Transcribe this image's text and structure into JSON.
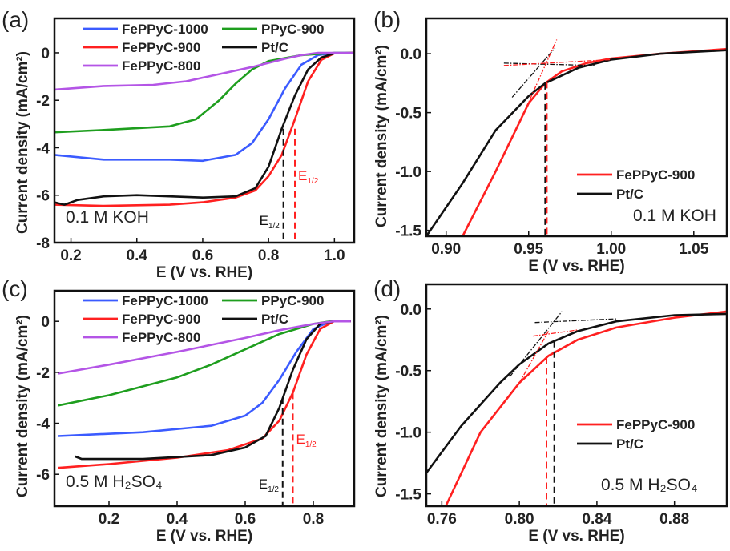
{
  "chart_data": [
    {
      "panel_label": "(a)",
      "type": "line",
      "xlabel": "E (V vs. RHE)",
      "ylabel": "Current density (mA/cm²)",
      "xlim": [
        0.15,
        1.06
      ],
      "ylim": [
        -8,
        1.45
      ],
      "xticks": [
        0.2,
        0.4,
        0.6,
        0.8,
        1.0
      ],
      "xtick_labels": [
        "0.2",
        "0.4",
        "0.6",
        "0.8",
        "1.0"
      ],
      "yticks": [
        -8,
        -6,
        -4,
        -2,
        0
      ],
      "ytick_labels": [
        "-8",
        "-6",
        "-4",
        "-2",
        "0"
      ],
      "annotation": "0.1 M KOH",
      "legend_layout": "grid",
      "series": [
        {
          "name": "FePPyC-1000",
          "color": "#3b5bff",
          "points": [
            [
              0.15,
              -4.3
            ],
            [
              0.3,
              -4.5
            ],
            [
              0.5,
              -4.5
            ],
            [
              0.6,
              -4.55
            ],
            [
              0.7,
              -4.3
            ],
            [
              0.75,
              -3.8
            ],
            [
              0.8,
              -2.8
            ],
            [
              0.85,
              -1.5
            ],
            [
              0.9,
              -0.5
            ],
            [
              0.95,
              -0.1
            ],
            [
              1.0,
              0
            ],
            [
              1.06,
              0
            ]
          ]
        },
        {
          "name": "PPyC-900",
          "color": "#1e9e1e",
          "points": [
            [
              0.15,
              -3.35
            ],
            [
              0.3,
              -3.25
            ],
            [
              0.5,
              -3.1
            ],
            [
              0.58,
              -2.8
            ],
            [
              0.65,
              -2.0
            ],
            [
              0.7,
              -1.3
            ],
            [
              0.75,
              -0.7
            ],
            [
              0.8,
              -0.35
            ],
            [
              0.9,
              -0.1
            ],
            [
              1.0,
              0
            ],
            [
              1.06,
              0
            ]
          ]
        },
        {
          "name": "FePPyC-900",
          "color": "#ff2020",
          "points": [
            [
              0.15,
              -6.4
            ],
            [
              0.3,
              -6.45
            ],
            [
              0.5,
              -6.4
            ],
            [
              0.6,
              -6.3
            ],
            [
              0.7,
              -6.1
            ],
            [
              0.76,
              -5.8
            ],
            [
              0.8,
              -5.2
            ],
            [
              0.84,
              -4.3
            ],
            [
              0.88,
              -2.8
            ],
            [
              0.92,
              -1.2
            ],
            [
              0.96,
              -0.3
            ],
            [
              1.0,
              -0.02
            ],
            [
              1.06,
              0
            ]
          ]
        },
        {
          "name": "Pt/C",
          "color": "#111111",
          "points": [
            [
              0.15,
              -6.3
            ],
            [
              0.18,
              -6.4
            ],
            [
              0.22,
              -6.2
            ],
            [
              0.3,
              -6.05
            ],
            [
              0.4,
              -6.0
            ],
            [
              0.5,
              -6.05
            ],
            [
              0.6,
              -6.1
            ],
            [
              0.7,
              -6.05
            ],
            [
              0.76,
              -5.7
            ],
            [
              0.8,
              -4.8
            ],
            [
              0.84,
              -3.2
            ],
            [
              0.88,
              -1.8
            ],
            [
              0.92,
              -0.7
            ],
            [
              0.96,
              -0.2
            ],
            [
              1.0,
              -0.02
            ],
            [
              1.06,
              0
            ]
          ]
        },
        {
          "name": "FePPyC-800",
          "color": "#b455e6",
          "points": [
            [
              0.15,
              -1.55
            ],
            [
              0.3,
              -1.4
            ],
            [
              0.45,
              -1.35
            ],
            [
              0.55,
              -1.2
            ],
            [
              0.65,
              -0.9
            ],
            [
              0.75,
              -0.6
            ],
            [
              0.85,
              -0.25
            ],
            [
              0.9,
              -0.1
            ],
            [
              0.95,
              0
            ],
            [
              1.06,
              0
            ]
          ]
        }
      ],
      "e_half": [
        {
          "x": 0.845,
          "y_top": -3.2,
          "color": "#111111"
        },
        {
          "x": 0.88,
          "y_top": -3.2,
          "color": "#ff2020"
        }
      ]
    },
    {
      "panel_label": "(b)",
      "type": "line",
      "xlabel": "E (V vs. RHE)",
      "ylabel": "Current density (mA/cm²)",
      "xlim": [
        0.888,
        1.07
      ],
      "ylim": [
        -1.55,
        0.3
      ],
      "xticks": [
        0.9,
        0.95,
        1.0,
        1.05
      ],
      "xtick_labels": [
        "0.90",
        "0.95",
        "1.00",
        "1.05"
      ],
      "yticks": [
        -1.5,
        -1.0,
        -0.5,
        0.0
      ],
      "ytick_labels": [
        "-1.5",
        "-1.0",
        "-0.5",
        "0.0"
      ],
      "annotation": "0.1 M KOH",
      "legend_layout": "column",
      "series": [
        {
          "name": "FePPyC-900",
          "color": "#ff2020",
          "points": [
            [
              0.91,
              -1.55
            ],
            [
              0.93,
              -1.0
            ],
            [
              0.95,
              -0.42
            ],
            [
              0.96,
              -0.25
            ],
            [
              0.97,
              -0.15
            ],
            [
              0.985,
              -0.08
            ],
            [
              1.0,
              -0.04
            ],
            [
              1.03,
              0.0
            ],
            [
              1.07,
              0.04
            ]
          ]
        },
        {
          "name": "Pt/C",
          "color": "#111111",
          "points": [
            [
              0.888,
              -1.55
            ],
            [
              0.91,
              -1.1
            ],
            [
              0.93,
              -0.65
            ],
            [
              0.95,
              -0.36
            ],
            [
              0.96,
              -0.25
            ],
            [
              0.98,
              -0.12
            ],
            [
              1.0,
              -0.05
            ],
            [
              1.03,
              0.0
            ],
            [
              1.07,
              0.03
            ]
          ]
        }
      ],
      "onset_markers": [
        {
          "x": 0.96,
          "color": "#111111"
        },
        {
          "x": 0.961,
          "color": "#ff2020"
        }
      ],
      "tangent_lines": [
        {
          "color": "#111111",
          "from": [
            0.94,
            -0.37
          ],
          "to": [
            0.966,
            0.05
          ]
        },
        {
          "color": "#111111",
          "from": [
            0.935,
            -0.08
          ],
          "to": [
            0.99,
            -0.1
          ]
        },
        {
          "color": "#ff2020",
          "from": [
            0.944,
            -0.6
          ],
          "to": [
            0.967,
            0.12
          ]
        },
        {
          "color": "#ff2020",
          "from": [
            0.935,
            -0.1
          ],
          "to": [
            1.0,
            -0.05
          ]
        }
      ]
    },
    {
      "panel_label": "(c)",
      "type": "line",
      "xlabel": "E (V vs. RHE)",
      "ylabel": "Current density (mA/cm²)",
      "xlim": [
        0.04,
        0.92
      ],
      "ylim": [
        -7.25,
        1.2
      ],
      "xticks": [
        0.2,
        0.4,
        0.6,
        0.8
      ],
      "xtick_labels": [
        "0.2",
        "0.4",
        "0.6",
        "0.8"
      ],
      "yticks": [
        -6,
        -4,
        -2,
        0
      ],
      "ytick_labels": [
        "-6",
        "-4",
        "-2",
        "0"
      ],
      "annotation": "0.5 M H₂SO₄",
      "legend_layout": "grid",
      "series": [
        {
          "name": "FePPyC-1000",
          "color": "#3b5bff",
          "points": [
            [
              0.05,
              -4.5
            ],
            [
              0.3,
              -4.35
            ],
            [
              0.5,
              -4.1
            ],
            [
              0.6,
              -3.7
            ],
            [
              0.65,
              -3.2
            ],
            [
              0.7,
              -2.3
            ],
            [
              0.75,
              -1.2
            ],
            [
              0.8,
              -0.3
            ],
            [
              0.85,
              0
            ],
            [
              0.91,
              0
            ]
          ]
        },
        {
          "name": "PPyC-900",
          "color": "#1e9e1e",
          "points": [
            [
              0.05,
              -3.3
            ],
            [
              0.2,
              -2.9
            ],
            [
              0.4,
              -2.2
            ],
            [
              0.5,
              -1.7
            ],
            [
              0.6,
              -1.1
            ],
            [
              0.7,
              -0.5
            ],
            [
              0.8,
              -0.1
            ],
            [
              0.85,
              0
            ],
            [
              0.91,
              0
            ]
          ]
        },
        {
          "name": "FePPyC-900",
          "color": "#ff2020",
          "points": [
            [
              0.05,
              -5.75
            ],
            [
              0.2,
              -5.6
            ],
            [
              0.4,
              -5.35
            ],
            [
              0.55,
              -5.05
            ],
            [
              0.65,
              -4.6
            ],
            [
              0.7,
              -3.9
            ],
            [
              0.74,
              -2.8
            ],
            [
              0.78,
              -1.3
            ],
            [
              0.82,
              -0.3
            ],
            [
              0.86,
              0
            ],
            [
              0.91,
              0
            ]
          ]
        },
        {
          "name": "Pt/C",
          "color": "#111111",
          "points": [
            [
              0.1,
              -5.3
            ],
            [
              0.12,
              -5.4
            ],
            [
              0.3,
              -5.4
            ],
            [
              0.5,
              -5.25
            ],
            [
              0.6,
              -4.95
            ],
            [
              0.66,
              -4.5
            ],
            [
              0.7,
              -3.4
            ],
            [
              0.74,
              -1.9
            ],
            [
              0.78,
              -0.7
            ],
            [
              0.82,
              -0.1
            ],
            [
              0.86,
              0
            ],
            [
              0.91,
              0
            ]
          ]
        },
        {
          "name": "FePPyC-800",
          "color": "#b455e6",
          "points": [
            [
              0.05,
              -2.05
            ],
            [
              0.2,
              -1.7
            ],
            [
              0.4,
              -1.2
            ],
            [
              0.6,
              -0.65
            ],
            [
              0.7,
              -0.35
            ],
            [
              0.8,
              -0.1
            ],
            [
              0.86,
              0
            ],
            [
              0.91,
              0
            ]
          ]
        }
      ],
      "e_half": [
        {
          "x": 0.71,
          "y_top": -3.0,
          "color": "#111111"
        },
        {
          "x": 0.74,
          "y_top": -2.8,
          "color": "#ff2020"
        }
      ]
    },
    {
      "panel_label": "(d)",
      "type": "line",
      "xlabel": "E (V vs. RHE)",
      "ylabel": "Current density (mA/cm²)",
      "xlim": [
        0.752,
        0.907
      ],
      "ylim": [
        -1.6,
        0.2
      ],
      "xticks": [
        0.76,
        0.8,
        0.84,
        0.88
      ],
      "xtick_labels": [
        "0.76",
        "0.80",
        "0.84",
        "0.88"
      ],
      "yticks": [
        -1.5,
        -1.0,
        -0.5,
        0.0
      ],
      "ytick_labels": [
        "-1.5",
        "-1.0",
        "-0.5",
        "0.0"
      ],
      "annotation": "0.5 M H₂SO₄",
      "legend_layout": "column",
      "series": [
        {
          "name": "FePPyC-900",
          "color": "#ff2020",
          "points": [
            [
              0.762,
              -1.6
            ],
            [
              0.78,
              -1.0
            ],
            [
              0.8,
              -0.6
            ],
            [
              0.815,
              -0.38
            ],
            [
              0.83,
              -0.25
            ],
            [
              0.85,
              -0.15
            ],
            [
              0.88,
              -0.07
            ],
            [
              0.907,
              -0.02
            ]
          ]
        },
        {
          "name": "Pt/C",
          "color": "#111111",
          "points": [
            [
              0.752,
              -1.33
            ],
            [
              0.77,
              -0.95
            ],
            [
              0.79,
              -0.6
            ],
            [
              0.8,
              -0.45
            ],
            [
              0.815,
              -0.28
            ],
            [
              0.83,
              -0.18
            ],
            [
              0.85,
              -0.1
            ],
            [
              0.88,
              -0.05
            ],
            [
              0.907,
              -0.04
            ]
          ]
        }
      ],
      "onset_markers": [
        {
          "x": 0.818,
          "color": "#111111"
        },
        {
          "x": 0.814,
          "color": "#ff2020"
        }
      ],
      "tangent_lines": [
        {
          "color": "#111111",
          "from": [
            0.795,
            -0.55
          ],
          "to": [
            0.822,
            -0.02
          ]
        },
        {
          "color": "#111111",
          "from": [
            0.808,
            -0.11
          ],
          "to": [
            0.85,
            -0.08
          ]
        },
        {
          "color": "#ff2020",
          "from": [
            0.8,
            -0.6
          ],
          "to": [
            0.815,
            -0.18
          ]
        },
        {
          "color": "#ff2020",
          "from": [
            0.807,
            -0.22
          ],
          "to": [
            0.83,
            -0.17
          ]
        }
      ]
    }
  ],
  "e_half_label": {
    "main": "E",
    "sub": "1/2"
  }
}
